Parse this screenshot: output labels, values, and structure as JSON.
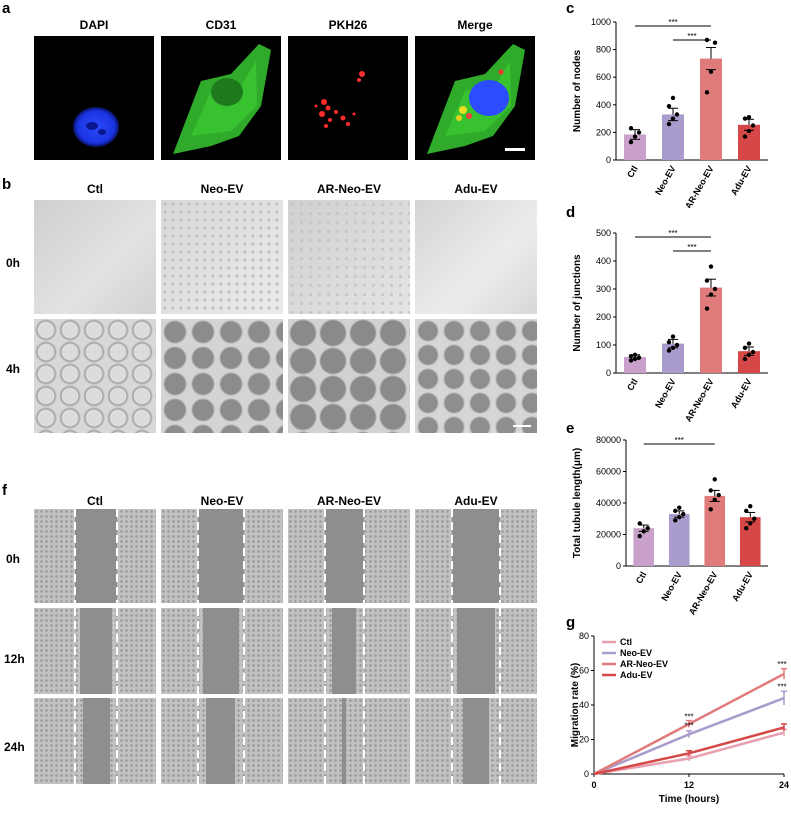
{
  "panels": {
    "a": {
      "letter": "a",
      "channels": [
        "DAPI",
        "CD31",
        "PKH26",
        "Merge"
      ]
    },
    "b": {
      "letter": "b",
      "groups": [
        "Ctl",
        "Neo-EV",
        "AR-Neo-EV",
        "Adu-EV"
      ],
      "rows": [
        "0h",
        "4h"
      ]
    },
    "f": {
      "letter": "f",
      "groups": [
        "Ctl",
        "Neo-EV",
        "AR-Neo-EV",
        "Adu-EV"
      ],
      "rows": [
        "0h",
        "12h",
        "24h"
      ]
    },
    "c": {
      "letter": "c"
    },
    "d": {
      "letter": "d"
    },
    "e": {
      "letter": "e"
    },
    "g": {
      "letter": "g"
    }
  },
  "chart_data": [
    {
      "id": "c",
      "type": "bar",
      "categories": [
        "Ctl",
        "Neo-EV",
        "AR-Neo-EV",
        "Adu-EV"
      ],
      "values": [
        185,
        330,
        735,
        255
      ],
      "errors": [
        35,
        45,
        80,
        40
      ],
      "points": [
        [
          130,
          170,
          200,
          230
        ],
        [
          260,
          300,
          330,
          390,
          450
        ],
        [
          490,
          640,
          850,
          870
        ],
        [
          170,
          210,
          250,
          300,
          310
        ]
      ],
      "ylabel": "Number of nodes",
      "ylim": [
        0,
        1000
      ],
      "yticks": [
        0,
        200,
        400,
        600,
        800,
        1000
      ],
      "colors": [
        "#c9a0c9",
        "#a99ccc",
        "#e07b7b",
        "#d64848"
      ],
      "significance": [
        {
          "from": 0,
          "to": 2,
          "label": "***"
        },
        {
          "from": 1,
          "to": 2,
          "label": "***"
        }
      ]
    },
    {
      "id": "d",
      "type": "bar",
      "categories": [
        "Ctl",
        "Neo-EV",
        "AR-Neo-EV",
        "Adu-EV"
      ],
      "values": [
        57,
        105,
        305,
        78
      ],
      "errors": [
        8,
        15,
        30,
        15
      ],
      "points": [
        [
          45,
          50,
          55,
          60,
          65
        ],
        [
          80,
          90,
          100,
          110,
          130
        ],
        [
          230,
          280,
          300,
          330,
          380
        ],
        [
          50,
          65,
          75,
          90,
          105
        ]
      ],
      "ylabel": "Number of junctions",
      "ylim": [
        0,
        500
      ],
      "yticks": [
        0,
        100,
        200,
        300,
        400,
        500
      ],
      "colors": [
        "#c9a0c9",
        "#a99ccc",
        "#e07b7b",
        "#d64848"
      ],
      "significance": [
        {
          "from": 0,
          "to": 2,
          "label": "***"
        },
        {
          "from": 1,
          "to": 2,
          "label": "***"
        }
      ]
    },
    {
      "id": "e",
      "type": "bar",
      "categories": [
        "Ctl",
        "Neo-EV",
        "AR-Neo-EV",
        "Adu-EV"
      ],
      "values": [
        24000,
        33000,
        44500,
        31000
      ],
      "errors": [
        2000,
        2000,
        3500,
        3000
      ],
      "points": [
        [
          19000,
          22000,
          24000,
          27000
        ],
        [
          29000,
          31000,
          33000,
          35000,
          37000
        ],
        [
          36000,
          42000,
          45000,
          48000,
          55000
        ],
        [
          24000,
          27000,
          30000,
          35000,
          38000
        ]
      ],
      "ylabel": "Total tubule length(μm)",
      "ylim": [
        0,
        80000
      ],
      "yticks": [
        0,
        20000,
        40000,
        60000,
        80000
      ],
      "colors": [
        "#c9a0c9",
        "#a99ccc",
        "#e07b7b",
        "#d64848"
      ],
      "significance": [
        {
          "from": 0,
          "to": 2,
          "label": "***"
        }
      ]
    },
    {
      "id": "g",
      "type": "line",
      "x": [
        0,
        12,
        24
      ],
      "series": [
        {
          "name": "Ctl",
          "values": [
            0,
            9,
            24
          ],
          "errors": [
            0,
            1.5,
            2
          ],
          "color": "#e8a0b0"
        },
        {
          "name": "Neo-EV",
          "values": [
            0,
            23,
            44
          ],
          "errors": [
            0,
            2,
            4
          ],
          "color": "#a99ccc"
        },
        {
          "name": "AR-Neo-EV",
          "values": [
            0,
            29,
            58
          ],
          "errors": [
            0,
            2,
            3
          ],
          "color": "#e07b7b"
        },
        {
          "name": "Adu-EV",
          "values": [
            0,
            12,
            27
          ],
          "errors": [
            0,
            1.5,
            2
          ],
          "color": "#d64848"
        }
      ],
      "xlabel": "Time (hours)",
      "ylabel": "Migration rate (%)",
      "xlim": [
        0,
        24
      ],
      "ylim": [
        0,
        80
      ],
      "xticks": [
        0,
        12,
        24
      ],
      "yticks": [
        0,
        20,
        40,
        60,
        80
      ],
      "annotations": [
        "***",
        "***",
        "***",
        "***"
      ],
      "legend": "top-left"
    }
  ]
}
